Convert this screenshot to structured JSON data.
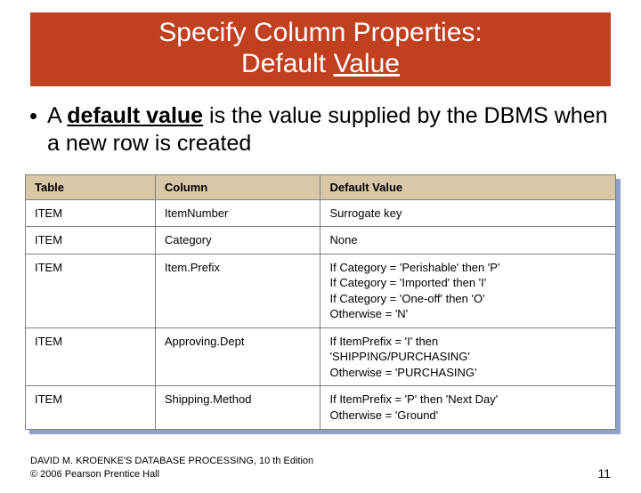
{
  "title": {
    "line1": "Specify Column Properties:",
    "line2_prefix": "Default ",
    "line2_underlined": "Value"
  },
  "bullet": {
    "prefix": "A ",
    "term": "default value",
    "rest": " is the value supplied by the DBMS when a new row is created"
  },
  "table": {
    "headers": {
      "c1": "Table",
      "c2": "Column",
      "c3": "Default Value"
    },
    "rows": [
      {
        "table": "ITEM",
        "column": "ItemNumber",
        "default": "Surrogate key"
      },
      {
        "table": "ITEM",
        "column": "Category",
        "default": "None"
      },
      {
        "table": "ITEM",
        "column": "Item.Prefix",
        "default": "If Category = 'Perishable' then 'P'\nIf Category = 'Imported' then 'I'\nIf Category = 'One-off' then 'O'\nOtherwise = 'N'"
      },
      {
        "table": "ITEM",
        "column": "Approving.Dept",
        "default": "If ItemPrefix = 'I' then\n    'SHIPPING/PURCHASING'\nOtherwise = 'PURCHASING'"
      },
      {
        "table": "ITEM",
        "column": "Shipping.Method",
        "default": "If ItemPrefix = 'P' then 'Next Day'\nOtherwise = 'Ground'"
      }
    ]
  },
  "footer": {
    "line1": "DAVID M. KROENKE'S DATABASE PROCESSING, 10 th Edition",
    "line2": "© 2006 Pearson Prentice Hall",
    "page": "11"
  },
  "colors": {
    "banner_bg": "#c04020",
    "table_header_bg": "#d8c8a8",
    "table_shadow": "#8fa0c8",
    "table_border": "#808080"
  }
}
